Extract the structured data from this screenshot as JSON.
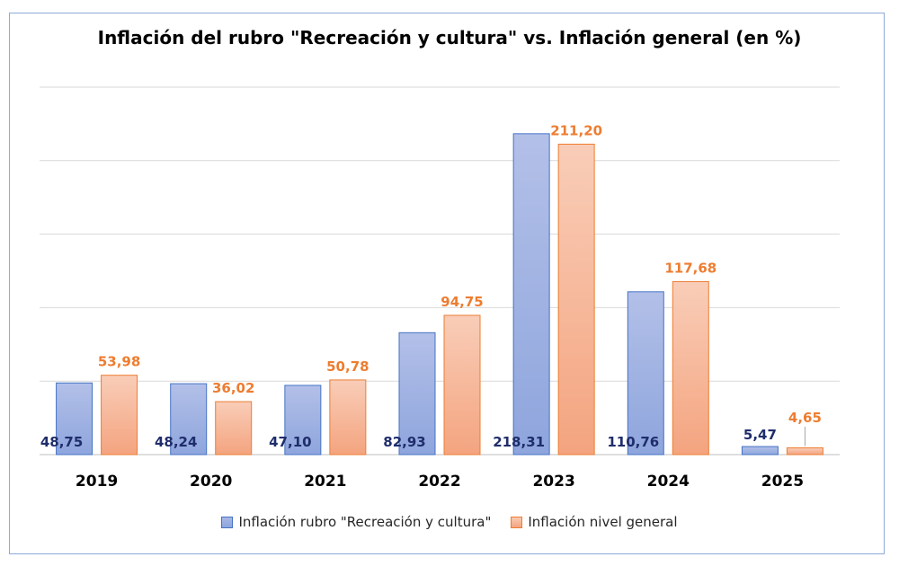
{
  "chart_data": {
    "type": "bar",
    "title": "Inflación del rubro \"Recreación y cultura\" vs. Inflación general (en %)",
    "categories": [
      "2019",
      "2020",
      "2021",
      "2022",
      "2023",
      "2024",
      "2025"
    ],
    "series": [
      {
        "name": "Inflación rubro \"Recreación y cultura\"",
        "values": [
          48.75,
          48.24,
          47.1,
          82.93,
          218.31,
          110.76,
          5.47
        ],
        "labels": [
          "48,75",
          "48,24",
          "47,10",
          "82,93",
          "218,31",
          "110,76",
          "5,47"
        ],
        "color": "#8ea5dd",
        "border": "#4472c4",
        "label_color": "#1f2d6b"
      },
      {
        "name": "Inflación nivel general",
        "values": [
          53.98,
          36.02,
          50.78,
          94.75,
          211.2,
          117.68,
          4.65
        ],
        "labels": [
          "53,98",
          "36,02",
          "50,78",
          "94,75",
          "211,20",
          "117,68",
          "4,65"
        ],
        "color": "#f4a47f",
        "border": "#ed7d31",
        "label_color": "#ed7d31"
      }
    ],
    "ylim": [
      0,
      250
    ],
    "grid": true,
    "legend": "bottom"
  }
}
